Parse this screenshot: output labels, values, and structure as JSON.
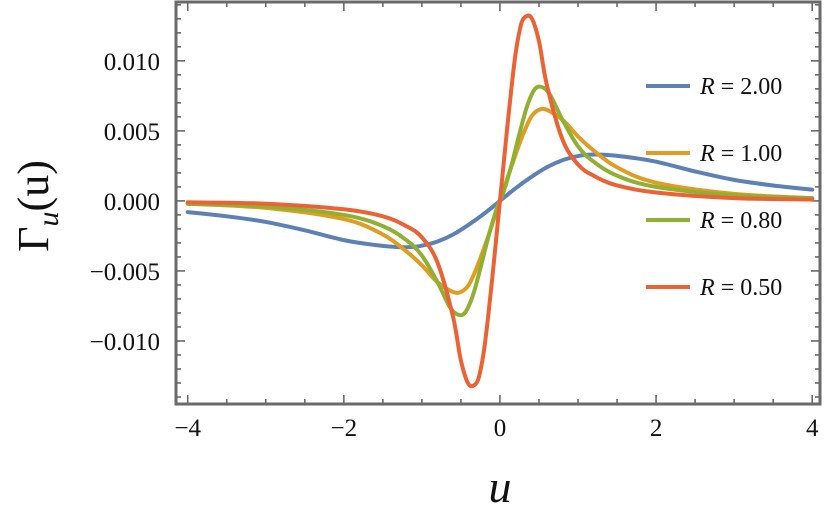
{
  "chart_data": {
    "type": "line",
    "xlabel": "u",
    "ylabel": "Γu(u)",
    "ylabel_parts": {
      "base": "Γ",
      "subscript": "u",
      "argument": "(u)"
    },
    "xlim": [
      -4.15,
      4.1
    ],
    "ylim": [
      -0.0145,
      0.0142
    ],
    "x_ticks": [
      -4,
      -2,
      0,
      2,
      4
    ],
    "x_tick_labels": [
      "−4",
      "−2",
      "0",
      "2",
      "4"
    ],
    "y_ticks": [
      0.01,
      0.005,
      0.0,
      -0.005,
      -0.01
    ],
    "y_tick_labels": [
      "0.010",
      "0.005",
      "0.000",
      "−0.005",
      "−0.010"
    ],
    "grid": false,
    "legend_position": "right",
    "series": [
      {
        "name": "R = 2.00",
        "label_lhs": "R",
        "label_rhs": "= 2.00",
        "color": "#5e81b5",
        "x": [
          -4,
          -3.5,
          -3,
          -2.5,
          -2,
          -1.6,
          -1.3,
          -1.15,
          -1,
          -0.8,
          -0.6,
          -0.4,
          -0.2,
          0,
          0.2,
          0.4,
          0.6,
          0.8,
          1,
          1.15,
          1.3,
          1.6,
          2,
          2.5,
          3,
          3.5,
          4
        ],
        "y": [
          -0.0008,
          -0.0011,
          -0.0015,
          -0.0021,
          -0.0028,
          -0.00315,
          -0.0033,
          -0.0033,
          -0.0032,
          -0.0029,
          -0.0024,
          -0.0017,
          -0.0009,
          0,
          0.0009,
          0.0017,
          0.0024,
          0.0029,
          0.0032,
          0.0033,
          0.0033,
          0.00315,
          0.0028,
          0.0021,
          0.0015,
          0.0011,
          0.0008
        ]
      },
      {
        "name": "R = 1.00",
        "label_lhs": "R",
        "label_rhs": "= 1.00",
        "color": "#e19c24",
        "x": [
          -4,
          -3,
          -2,
          -1.5,
          -1.2,
          -1,
          -0.8,
          -0.6,
          -0.5,
          -0.4,
          -0.3,
          -0.2,
          -0.1,
          0,
          0.1,
          0.2,
          0.3,
          0.4,
          0.5,
          0.6,
          0.8,
          1,
          1.2,
          1.5,
          2,
          3,
          4
        ],
        "y": [
          -0.0002,
          -0.0005,
          -0.0013,
          -0.0024,
          -0.0036,
          -0.0046,
          -0.0058,
          -0.0065,
          -0.0065,
          -0.006,
          -0.0048,
          -0.0033,
          -0.0017,
          0,
          0.0017,
          0.0033,
          0.0048,
          0.006,
          0.0065,
          0.0065,
          0.0058,
          0.0046,
          0.0036,
          0.0024,
          0.0013,
          0.0005,
          0.0002
        ]
      },
      {
        "name": "R = 0.80",
        "label_lhs": "R",
        "label_rhs": "= 0.80",
        "color": "#8fb032",
        "x": [
          -4,
          -3,
          -2,
          -1.5,
          -1.2,
          -1,
          -0.8,
          -0.65,
          -0.55,
          -0.45,
          -0.35,
          -0.25,
          -0.15,
          -0.05,
          0,
          0.05,
          0.15,
          0.25,
          0.35,
          0.45,
          0.55,
          0.65,
          0.8,
          1,
          1.2,
          1.5,
          2,
          3,
          4
        ],
        "y": [
          -0.0002,
          -0.0004,
          -0.001,
          -0.0018,
          -0.0028,
          -0.0039,
          -0.0058,
          -0.0075,
          -0.0081,
          -0.008,
          -0.0068,
          -0.0048,
          -0.0026,
          -0.0007,
          0,
          0.0007,
          0.0026,
          0.0048,
          0.0068,
          0.008,
          0.0081,
          0.0075,
          0.0058,
          0.0039,
          0.0028,
          0.0018,
          0.001,
          0.0004,
          0.0002
        ]
      },
      {
        "name": "R = 0.50",
        "label_lhs": "R",
        "label_rhs": "= 0.50",
        "color": "#eb6235",
        "x": [
          -4,
          -3,
          -2,
          -1.5,
          -1.2,
          -1,
          -0.8,
          -0.6,
          -0.5,
          -0.4,
          -0.3,
          -0.25,
          -0.2,
          -0.15,
          -0.1,
          -0.05,
          0,
          0.05,
          0.1,
          0.15,
          0.2,
          0.25,
          0.3,
          0.4,
          0.5,
          0.6,
          0.8,
          1,
          1.2,
          1.5,
          2,
          3,
          4
        ],
        "y": [
          -0.0001,
          -0.0002,
          -0.0006,
          -0.0011,
          -0.0018,
          -0.0026,
          -0.0044,
          -0.0083,
          -0.0114,
          -0.0131,
          -0.013,
          -0.0121,
          -0.0105,
          -0.0082,
          -0.0056,
          -0.0028,
          0,
          0.0028,
          0.0056,
          0.0082,
          0.0105,
          0.0121,
          0.013,
          0.0131,
          0.0114,
          0.0083,
          0.0044,
          0.0026,
          0.0018,
          0.0011,
          0.0006,
          0.0002,
          0.0001
        ]
      }
    ]
  }
}
